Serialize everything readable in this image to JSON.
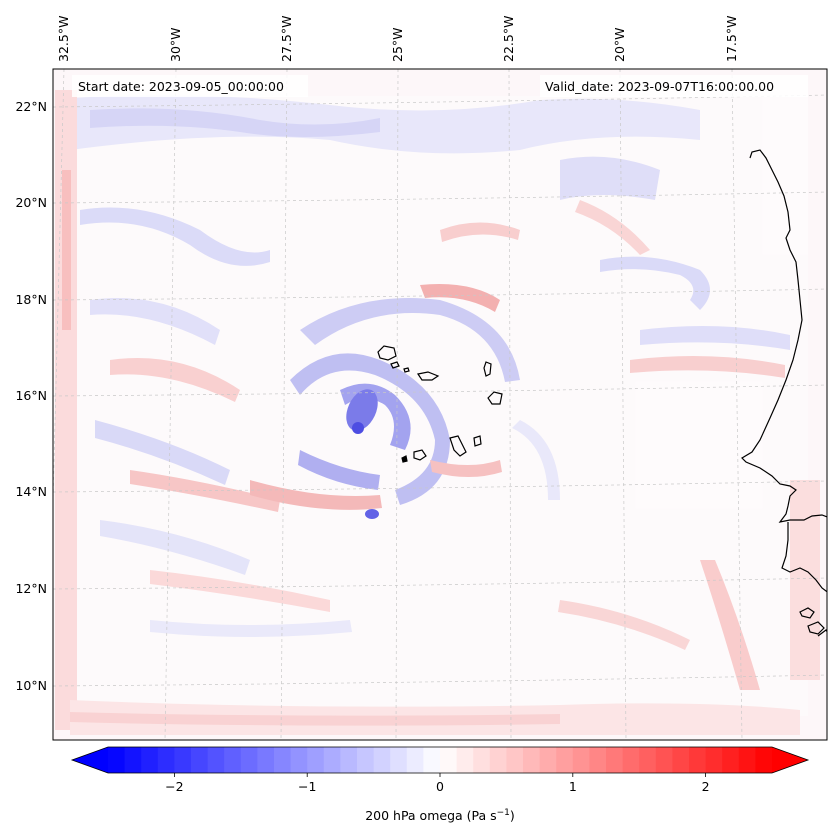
{
  "map": {
    "start_label": "Start date: 2023-09-05_00:00:00",
    "valid_label": "Valid_date: 2023-09-07T16:00:00.00",
    "lon_ticks": [
      "32.5°W",
      "30°W",
      "27.5°W",
      "25°W",
      "22.5°W",
      "20°W",
      "17.5°W"
    ],
    "lat_ticks": [
      "22°N",
      "20°N",
      "18°N",
      "16°N",
      "14°N",
      "12°N",
      "10°N"
    ],
    "field": "200 hPa omega",
    "units": "Pa s⁻¹"
  },
  "colorbar": {
    "label": "200 hPa omega (Pa s",
    "label_exp": "−1",
    "label_close": ")",
    "ticks": [
      "−2",
      "−1",
      "0",
      "1",
      "2"
    ],
    "tick_values": [
      -2,
      -1,
      0,
      1,
      2
    ],
    "range": [
      -2.5,
      2.5
    ],
    "levels": 40,
    "extend": "both",
    "colormap": "bwr",
    "low_color": "#0000ff",
    "mid_color": "#ffffff",
    "high_color": "#ff0000"
  },
  "colors": {
    "coast": "#000000",
    "grid": "#bbbbbb",
    "frame": "#000000"
  }
}
